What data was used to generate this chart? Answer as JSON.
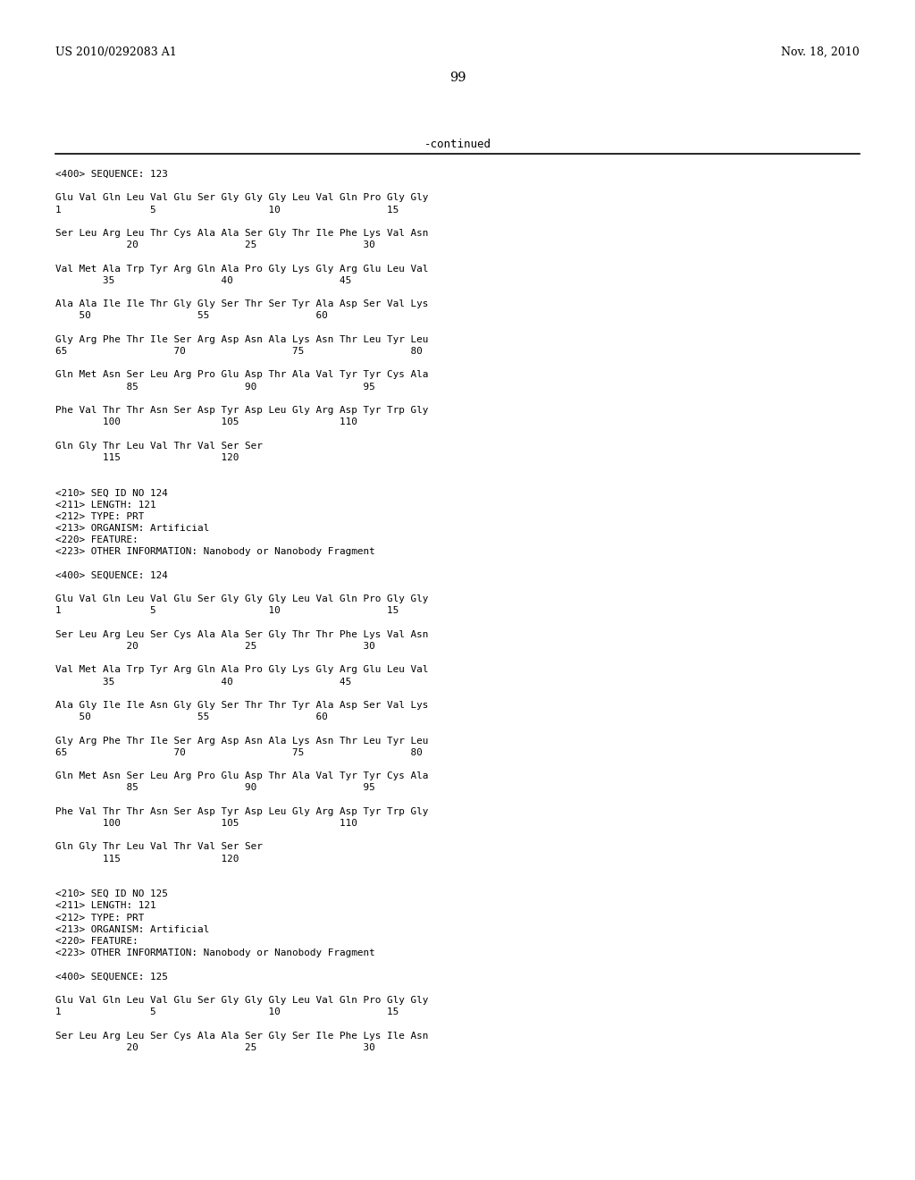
{
  "header_left": "US 2010/0292083 A1",
  "header_right": "Nov. 18, 2010",
  "page_number": "99",
  "continued_text": "-continued",
  "background_color": "#ffffff",
  "text_color": "#000000",
  "lines": [
    {
      "type": "mono",
      "text": "<400> SEQUENCE: 123"
    },
    {
      "type": "blank"
    },
    {
      "type": "mono",
      "text": "Glu Val Gln Leu Val Glu Ser Gly Gly Gly Leu Val Gln Pro Gly Gly"
    },
    {
      "type": "mono",
      "text": "1               5                   10                  15"
    },
    {
      "type": "blank"
    },
    {
      "type": "mono",
      "text": "Ser Leu Arg Leu Thr Cys Ala Ala Ser Gly Thr Ile Phe Lys Val Asn"
    },
    {
      "type": "mono",
      "text": "            20                  25                  30"
    },
    {
      "type": "blank"
    },
    {
      "type": "mono",
      "text": "Val Met Ala Trp Tyr Arg Gln Ala Pro Gly Lys Gly Arg Glu Leu Val"
    },
    {
      "type": "mono",
      "text": "        35                  40                  45"
    },
    {
      "type": "blank"
    },
    {
      "type": "mono",
      "text": "Ala Ala Ile Ile Thr Gly Gly Ser Thr Ser Tyr Ala Asp Ser Val Lys"
    },
    {
      "type": "mono",
      "text": "    50                  55                  60"
    },
    {
      "type": "blank"
    },
    {
      "type": "mono",
      "text": "Gly Arg Phe Thr Ile Ser Arg Asp Asn Ala Lys Asn Thr Leu Tyr Leu"
    },
    {
      "type": "mono",
      "text": "65                  70                  75                  80"
    },
    {
      "type": "blank"
    },
    {
      "type": "mono",
      "text": "Gln Met Asn Ser Leu Arg Pro Glu Asp Thr Ala Val Tyr Tyr Cys Ala"
    },
    {
      "type": "mono",
      "text": "            85                  90                  95"
    },
    {
      "type": "blank"
    },
    {
      "type": "mono",
      "text": "Phe Val Thr Thr Asn Ser Asp Tyr Asp Leu Gly Arg Asp Tyr Trp Gly"
    },
    {
      "type": "mono",
      "text": "        100                 105                 110"
    },
    {
      "type": "blank"
    },
    {
      "type": "mono",
      "text": "Gln Gly Thr Leu Val Thr Val Ser Ser"
    },
    {
      "type": "mono",
      "text": "        115                 120"
    },
    {
      "type": "blank"
    },
    {
      "type": "blank"
    },
    {
      "type": "mono",
      "text": "<210> SEQ ID NO 124"
    },
    {
      "type": "mono",
      "text": "<211> LENGTH: 121"
    },
    {
      "type": "mono",
      "text": "<212> TYPE: PRT"
    },
    {
      "type": "mono",
      "text": "<213> ORGANISM: Artificial"
    },
    {
      "type": "mono",
      "text": "<220> FEATURE:"
    },
    {
      "type": "mono",
      "text": "<223> OTHER INFORMATION: Nanobody or Nanobody Fragment"
    },
    {
      "type": "blank"
    },
    {
      "type": "mono",
      "text": "<400> SEQUENCE: 124"
    },
    {
      "type": "blank"
    },
    {
      "type": "mono",
      "text": "Glu Val Gln Leu Val Glu Ser Gly Gly Gly Leu Val Gln Pro Gly Gly"
    },
    {
      "type": "mono",
      "text": "1               5                   10                  15"
    },
    {
      "type": "blank"
    },
    {
      "type": "mono",
      "text": "Ser Leu Arg Leu Ser Cys Ala Ala Ser Gly Thr Thr Phe Lys Val Asn"
    },
    {
      "type": "mono",
      "text": "            20                  25                  30"
    },
    {
      "type": "blank"
    },
    {
      "type": "mono",
      "text": "Val Met Ala Trp Tyr Arg Gln Ala Pro Gly Lys Gly Arg Glu Leu Val"
    },
    {
      "type": "mono",
      "text": "        35                  40                  45"
    },
    {
      "type": "blank"
    },
    {
      "type": "mono",
      "text": "Ala Gly Ile Ile Asn Gly Gly Ser Thr Thr Tyr Ala Asp Ser Val Lys"
    },
    {
      "type": "mono",
      "text": "    50                  55                  60"
    },
    {
      "type": "blank"
    },
    {
      "type": "mono",
      "text": "Gly Arg Phe Thr Ile Ser Arg Asp Asn Ala Lys Asn Thr Leu Tyr Leu"
    },
    {
      "type": "mono",
      "text": "65                  70                  75                  80"
    },
    {
      "type": "blank"
    },
    {
      "type": "mono",
      "text": "Gln Met Asn Ser Leu Arg Pro Glu Asp Thr Ala Val Tyr Tyr Cys Ala"
    },
    {
      "type": "mono",
      "text": "            85                  90                  95"
    },
    {
      "type": "blank"
    },
    {
      "type": "mono",
      "text": "Phe Val Thr Thr Asn Ser Asp Tyr Asp Leu Gly Arg Asp Tyr Trp Gly"
    },
    {
      "type": "mono",
      "text": "        100                 105                 110"
    },
    {
      "type": "blank"
    },
    {
      "type": "mono",
      "text": "Gln Gly Thr Leu Val Thr Val Ser Ser"
    },
    {
      "type": "mono",
      "text": "        115                 120"
    },
    {
      "type": "blank"
    },
    {
      "type": "blank"
    },
    {
      "type": "mono",
      "text": "<210> SEQ ID NO 125"
    },
    {
      "type": "mono",
      "text": "<211> LENGTH: 121"
    },
    {
      "type": "mono",
      "text": "<212> TYPE: PRT"
    },
    {
      "type": "mono",
      "text": "<213> ORGANISM: Artificial"
    },
    {
      "type": "mono",
      "text": "<220> FEATURE:"
    },
    {
      "type": "mono",
      "text": "<223> OTHER INFORMATION: Nanobody or Nanobody Fragment"
    },
    {
      "type": "blank"
    },
    {
      "type": "mono",
      "text": "<400> SEQUENCE: 125"
    },
    {
      "type": "blank"
    },
    {
      "type": "mono",
      "text": "Glu Val Gln Leu Val Glu Ser Gly Gly Gly Leu Val Gln Pro Gly Gly"
    },
    {
      "type": "mono",
      "text": "1               5                   10                  15"
    },
    {
      "type": "blank"
    },
    {
      "type": "mono",
      "text": "Ser Leu Arg Leu Ser Cys Ala Ala Ser Gly Ser Ile Phe Lys Ile Asn"
    },
    {
      "type": "mono",
      "text": "            20                  25                  30"
    }
  ]
}
